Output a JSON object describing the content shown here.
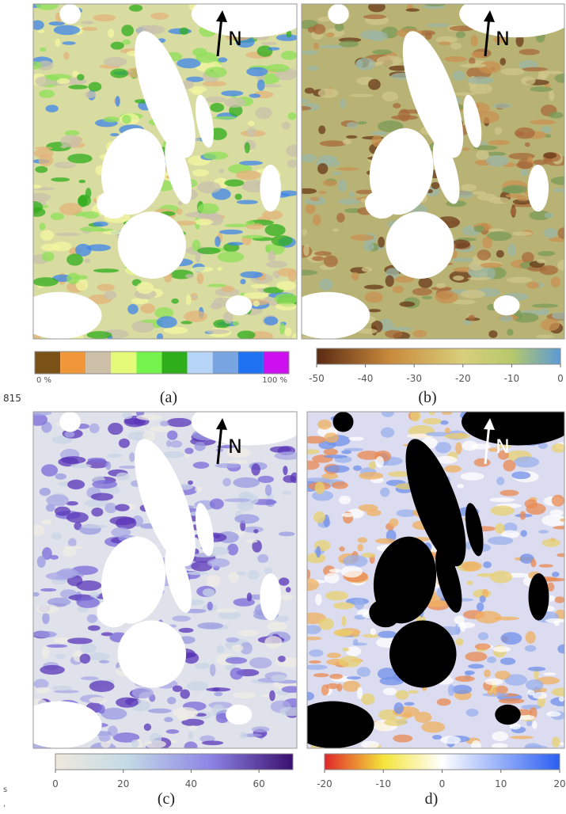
{
  "line_number": "815",
  "margin_text": [
    "s",
    ","
  ],
  "panels": [
    {
      "label": "(a)",
      "north": "N",
      "colorbar": {
        "colors": [
          "#7a5218",
          "#f0973a",
          "#cdbfa8",
          "#e6fa7a",
          "#74f34c",
          "#2fae1c",
          "#b6d4f6",
          "#78a4e2",
          "#1f73f2",
          "#cc11ee"
        ],
        "labels": [
          "0 %",
          "100 %"
        ]
      }
    },
    {
      "label": "(b)",
      "north": "N",
      "colorbar": {
        "lim": [
          -50,
          0
        ],
        "ticks": [
          -50,
          -40,
          -30,
          -20,
          -10,
          0
        ]
      }
    },
    {
      "label": "(c)",
      "north": "N",
      "colorbar": {
        "lim": [
          0,
          70
        ],
        "ticks": [
          0,
          20,
          40,
          60
        ]
      }
    },
    {
      "label": "d)",
      "north": "N",
      "colorbar": {
        "lim": [
          -20,
          20
        ],
        "ticks": [
          -20,
          -10,
          0,
          10,
          20
        ]
      }
    }
  ]
}
